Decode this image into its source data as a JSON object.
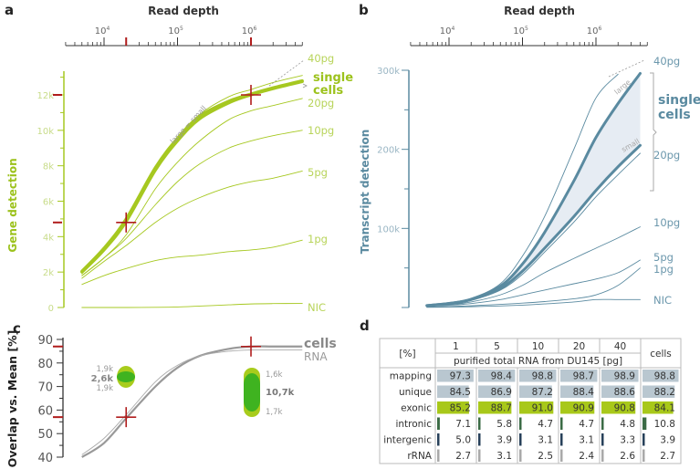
{
  "chart_data": [
    {
      "panel": "a",
      "type": "line",
      "top_axis_title": "Read depth",
      "top_axis_scale": "log",
      "top_axis_ticks": [
        "10^4",
        "10^5",
        "10^6"
      ],
      "top_axis_range": [
        3000,
        5000000
      ],
      "top_axis_highlight_values": [
        20000,
        1000000
      ],
      "ylabel": "Gene detection",
      "yticks": [
        "0",
        "2k",
        "4k",
        "6k",
        "8k",
        "10k",
        "12k"
      ],
      "ylim": [
        0,
        13500
      ],
      "highlight_y": [
        4800,
        12000
      ],
      "markers": [
        {
          "x": 20000,
          "y": 4800
        },
        {
          "x": 1000000,
          "y": 12000
        }
      ],
      "x": [
        5000,
        10000,
        20000,
        50000,
        100000,
        200000,
        500000,
        1000000,
        2000000,
        5000000
      ],
      "series": [
        {
          "name": "40pg",
          "values": [
            1900,
            3200,
            4900,
            7800,
            9600,
            10900,
            11900,
            12300,
            12700,
            13100
          ]
        },
        {
          "name": "single cells (large)",
          "values": [
            2050,
            3350,
            5000,
            7900,
            9550,
            10800,
            11650,
            12050,
            12400,
            12800
          ]
        },
        {
          "name": "single cells (small)",
          "values": [
            2000,
            3250,
            4850,
            7750,
            9400,
            10650,
            11550,
            12000,
            12350,
            12750
          ]
        },
        {
          "name": "20pg",
          "values": [
            1800,
            2800,
            4100,
            6700,
            8200,
            9400,
            10600,
            11100,
            11400,
            11800
          ]
        },
        {
          "name": "10pg",
          "values": [
            1800,
            2800,
            3900,
            5800,
            7100,
            8100,
            9000,
            9400,
            9700,
            10000
          ]
        },
        {
          "name": "5pg",
          "values": [
            1650,
            2600,
            3500,
            4800,
            5600,
            6200,
            6800,
            7100,
            7300,
            7700
          ]
        },
        {
          "name": "1pg",
          "values": [
            1300,
            1800,
            2200,
            2650,
            2850,
            2950,
            3150,
            3250,
            3400,
            3800
          ]
        },
        {
          "name": "NIC",
          "values": [
            0,
            0,
            0,
            10,
            30,
            80,
            150,
            200,
            220,
            230
          ]
        }
      ],
      "labels": [
        "40pg",
        "single cells",
        "20pg",
        "10pg",
        "5pg",
        "1pg",
        "NIC"
      ],
      "annotation": "large = small"
    },
    {
      "panel": "b",
      "type": "area",
      "top_axis_title": "Read depth",
      "top_axis_scale": "log",
      "top_axis_ticks": [
        "10^4",
        "10^5",
        "10^6"
      ],
      "top_axis_range": [
        3000,
        5000000
      ],
      "ylabel": "Transcript detection",
      "yticks": [
        "100k",
        "200k",
        "300k"
      ],
      "ylim": [
        0,
        300000
      ],
      "x": [
        5000,
        10000,
        20000,
        50000,
        100000,
        200000,
        500000,
        1000000,
        2000000,
        4000000
      ],
      "series": [
        {
          "name": "40pg",
          "values": [
            2500,
            5500,
            11000,
            30000,
            65000,
            115000,
            200000,
            265000,
            295000,
            null
          ]
        },
        {
          "name": "single cells (large)",
          "values": [
            2500,
            5200,
            10500,
            27000,
            55000,
            95000,
            160000,
            215000,
            258000,
            296000
          ]
        },
        {
          "name": "single cells (small)",
          "values": [
            2500,
            5000,
            10000,
            24000,
            46000,
            75000,
            115000,
            148000,
            178000,
            205000
          ]
        },
        {
          "name": "20pg",
          "values": [
            2000,
            4500,
            9000,
            22000,
            42000,
            70000,
            108000,
            140000,
            168000,
            195000
          ]
        },
        {
          "name": "10pg",
          "values": [
            1500,
            3500,
            7000,
            16000,
            28000,
            44000,
            62000,
            75000,
            88000,
            102000
          ]
        },
        {
          "name": "5pg",
          "values": [
            1200,
            2800,
            5000,
            10000,
            16000,
            22000,
            30000,
            36000,
            44000,
            60000
          ]
        },
        {
          "name": "1pg",
          "values": [
            500,
            1200,
            2200,
            4000,
            5500,
            7500,
            11000,
            16000,
            28000,
            50000
          ]
        },
        {
          "name": "NIC",
          "values": [
            200,
            500,
            1000,
            2000,
            3000,
            4500,
            7000,
            10000,
            10000,
            10000
          ]
        }
      ],
      "labels": [
        "40pg",
        "single cells",
        "20pg",
        "10pg",
        "5pg",
        "1pg",
        "NIC"
      ],
      "annotations": [
        "large",
        "small"
      ]
    },
    {
      "panel": "c",
      "type": "line",
      "ylabel": "Overlap vs. Mean [%]",
      "yticks": [
        "40",
        "50",
        "60",
        "70",
        "80",
        "90"
      ],
      "ylim": [
        40,
        90
      ],
      "highlight_y": [
        57,
        87
      ],
      "markers": [
        {
          "x": 20000,
          "y": 57
        },
        {
          "x": 1000000,
          "y": 87
        }
      ],
      "x": [
        5000,
        10000,
        20000,
        50000,
        100000,
        200000,
        500000,
        1000000,
        2000000,
        5000000
      ],
      "series": [
        {
          "name": "cells",
          "values": [
            40,
            46,
            56.5,
            70,
            78,
            83,
            86,
            87,
            87,
            87
          ]
        },
        {
          "name": "RNA",
          "values": [
            41,
            48,
            58,
            72,
            79,
            83,
            85,
            85.5,
            85.5,
            85.5
          ]
        }
      ],
      "labels": [
        "cells",
        "RNA"
      ],
      "venn": [
        {
          "shared": "2,6k",
          "top": "1,9k",
          "bottom": "1,9k"
        },
        {
          "shared": "10,7k",
          "top": "1,6k",
          "bottom": "1,7k"
        }
      ]
    },
    {
      "panel": "d",
      "type": "table",
      "corner_header": "[%]",
      "group_header": "purified total RNA from DU145 [pg]",
      "columns": [
        "1",
        "5",
        "10",
        "20",
        "40",
        "cells"
      ],
      "rows": [
        {
          "label": "mapping",
          "values": [
            "97.3",
            "98.4",
            "98.8",
            "98.7",
            "98.9",
            "98.8"
          ],
          "numeric": [
            97.3,
            98.4,
            98.8,
            98.7,
            98.9,
            98.8
          ],
          "bar_color": "#b9c7d0"
        },
        {
          "label": "unique",
          "values": [
            "84.5",
            "86.9",
            "87.2",
            "88.4",
            "88.6",
            "88.2"
          ],
          "numeric": [
            84.5,
            86.9,
            87.2,
            88.4,
            88.6,
            88.2
          ],
          "bar_color": "#b9c7d0"
        },
        {
          "label": "exonic",
          "values": [
            "85.2",
            "88.7",
            "91.0",
            "90.9",
            "90.8",
            "84.1"
          ],
          "numeric": [
            85.2,
            88.7,
            91.0,
            90.9,
            90.8,
            84.1
          ],
          "bar_color": "#a8c81a"
        },
        {
          "label": "intronic",
          "values": [
            "7.1",
            "5.8",
            "4.7",
            "4.7",
            "4.8",
            "10.8"
          ],
          "numeric": [
            7.1,
            5.8,
            4.7,
            4.7,
            4.8,
            10.8
          ],
          "bar_color": "#3b6b45"
        },
        {
          "label": "intergenic",
          "values": [
            "5.0",
            "3.9",
            "3.1",
            "3.1",
            "3.3",
            "3.9"
          ],
          "numeric": [
            5.0,
            3.9,
            3.1,
            3.1,
            3.3,
            3.9
          ],
          "bar_color": "#27405a"
        },
        {
          "label": "rRNA",
          "values": [
            "2.7",
            "3.1",
            "2.5",
            "2.4",
            "2.6",
            "2.7"
          ],
          "numeric": [
            2.7,
            3.1,
            2.5,
            2.4,
            2.6,
            2.7
          ],
          "bar_color": "#a9a9a9"
        }
      ]
    }
  ],
  "panels": {
    "a": {
      "letter": "a",
      "title": "Read depth",
      "ylabel": "Gene detection",
      "x_ticks": [
        "10",
        "10",
        "10"
      ],
      "x_exps": [
        "4",
        "5",
        "6"
      ],
      "yticks": [
        "0",
        "2k",
        "4k",
        "6k",
        "8k",
        "10k",
        "12k"
      ],
      "labels": {
        "p40": "40pg",
        "single": "single",
        "cells": "cells",
        "p20": "20pg",
        "p10": "10pg",
        "p5": "5pg",
        "p1": "1pg",
        "nic": "NIC"
      },
      "annotation": "large = small"
    },
    "b": {
      "letter": "b",
      "title": "Read depth",
      "ylabel": "Transcript detection",
      "x_ticks": [
        "10",
        "10",
        "10"
      ],
      "x_exps": [
        "4",
        "5",
        "6"
      ],
      "yticks": [
        "100k",
        "200k",
        "300k"
      ],
      "labels": {
        "p40": "40pg",
        "single": "single",
        "cells": "cells",
        "p20": "20pg",
        "p10": "10pg",
        "p5": "5pg",
        "p1": "1pg",
        "nic": "NIC"
      },
      "ann_large": "large",
      "ann_small": "small"
    },
    "c": {
      "letter": "c",
      "ylabel": "Overlap vs. Mean [%]",
      "yticks": [
        "40",
        "50",
        "60",
        "70",
        "80",
        "90"
      ],
      "labels": {
        "cells": "cells",
        "rna": "RNA"
      },
      "venn1": {
        "top": "1,9k",
        "mid": "2,6k",
        "bot": "1,9k"
      },
      "venn2": {
        "top": "1,6k",
        "mid": "10,7k",
        "bot": "1,7k"
      }
    },
    "d": {
      "letter": "d"
    }
  },
  "colors": {
    "green": "#a6c820",
    "green_text": "#9cc21c",
    "green_label": "#b8d45a",
    "teal": "#5a8aa0",
    "teal_text": "#6b97ac",
    "teal_fill": "#e6ecf3",
    "gray_curve": "#999999",
    "red": "#b01c1c",
    "venn_outer": "#a8cc1c",
    "venn_inner": "#3fb320"
  }
}
